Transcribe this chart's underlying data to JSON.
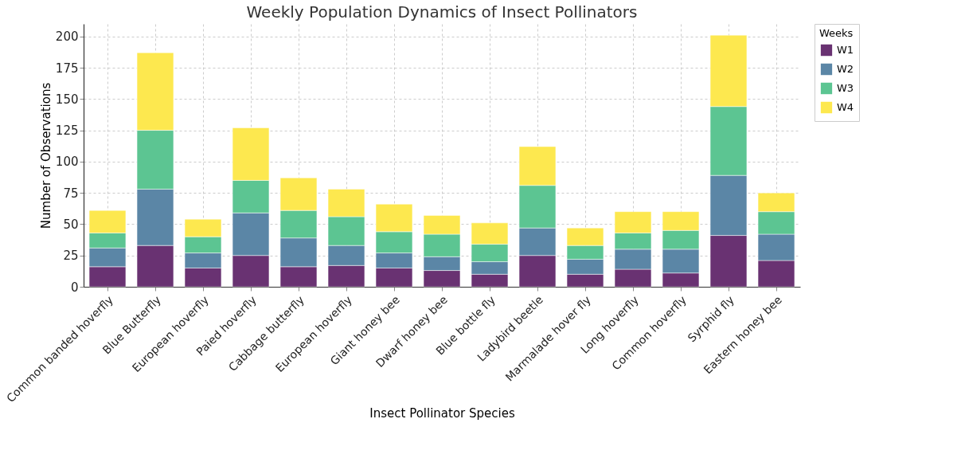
{
  "chart_data": {
    "type": "bar",
    "title": "Weekly Population Dynamics of Insect Pollinators",
    "xlabel": "Insect Pollinator Species",
    "ylabel": "Number of Observations",
    "legend_title": "Weeks",
    "categories": [
      "Common banded hoverfly",
      "Blue Butterfly",
      "European hoverfly",
      "Paied hoverfly",
      "Cabbage butterfly",
      "European hoverfly",
      "Giant honey bee",
      "Dwarf honey bee",
      "Blue bottle fly",
      "Ladybird beetle",
      "Marmalade hover fly",
      "Long hoverfly",
      "Common hoverfly",
      "Syrphid fly",
      "Eastern honey bee"
    ],
    "series": [
      {
        "name": "W1",
        "color": "#693272",
        "values": [
          16,
          33,
          15,
          25,
          16,
          17,
          15,
          13,
          10,
          25,
          10,
          14,
          11,
          41,
          21
        ]
      },
      {
        "name": "W2",
        "color": "#5b86a6",
        "values": [
          15,
          45,
          12,
          34,
          23,
          16,
          12,
          11,
          10,
          22,
          12,
          16,
          19,
          48,
          21
        ]
      },
      {
        "name": "W3",
        "color": "#5cc592",
        "values": [
          12,
          47,
          13,
          26,
          22,
          23,
          17,
          18,
          14,
          34,
          11,
          13,
          15,
          55,
          18
        ]
      },
      {
        "name": "W4",
        "color": "#fde84f",
        "values": [
          18,
          62,
          14,
          42,
          26,
          22,
          22,
          15,
          17,
          31,
          14,
          17,
          15,
          57,
          15
        ]
      }
    ],
    "stacked": true,
    "ylim": [
      0,
      210
    ],
    "yticks": [
      0,
      25,
      50,
      75,
      100,
      125,
      150,
      175,
      200
    ],
    "grid": true,
    "legend": "top right"
  }
}
